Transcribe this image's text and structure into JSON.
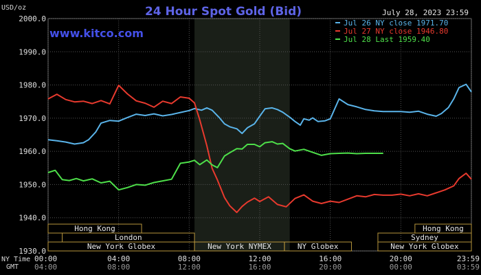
{
  "chart_data": {
    "type": "line",
    "title": "24 Hour Spot Gold (Bid)",
    "watermark": "www.kitco.com",
    "date_label": "July 28, 2023 23:59",
    "ylabel": "USD/oz",
    "ylim": [
      1930,
      2000
    ],
    "xlim": [
      0,
      24
    ],
    "y_ticks": [
      "2000.0",
      "1990.0",
      "1980.0",
      "1970.0",
      "1960.0",
      "1950.0",
      "1940.0",
      "1930.0"
    ],
    "y_tick_values": [
      2000,
      1990,
      1980,
      1970,
      1960,
      1950,
      1940,
      1930
    ],
    "x_ticks": [
      0,
      4,
      8,
      12,
      16,
      20,
      24
    ],
    "x_tick_labels": [
      "00:00",
      "04:00",
      "08:00",
      "12:00",
      "16:00",
      "20:00",
      "23:59"
    ],
    "gmt_tick_labels": [
      "04:00",
      "08:00",
      "12:00",
      "16:00",
      "20:00",
      "00:00",
      "03:59"
    ],
    "ny_time_label": "NY Time",
    "gmt_label": "GMT",
    "highlight_range": [
      8.3,
      13.7
    ],
    "legend": [
      {
        "text": "Jul 26 NY close 1971.70",
        "color": "#5ab4ea"
      },
      {
        "text": "Jul 27 NY close 1946.80",
        "color": "#e83a2e"
      },
      {
        "text": "Jul 28 Last 1959.40",
        "color": "#4ee04a"
      }
    ],
    "series": [
      {
        "color": "#5ab4ea",
        "x": [
          0,
          0.5,
          1,
          1.5,
          2,
          2.3,
          2.7,
          3,
          3.5,
          4,
          4.5,
          5,
          5.5,
          6,
          6.5,
          7,
          7.5,
          8,
          8.3,
          8.7,
          9,
          9.3,
          9.7,
          10,
          10.3,
          10.7,
          11,
          11.3,
          11.7,
          12,
          12.3,
          12.7,
          13,
          13.3,
          13.7,
          14,
          14.3,
          14.5,
          14.8,
          15,
          15.3,
          15.7,
          16,
          16.5,
          17,
          17.5,
          18,
          18.5,
          19,
          19.5,
          20,
          20.5,
          21,
          21.5,
          22,
          22.3,
          22.7,
          23,
          23.3,
          23.7,
          24
        ],
        "y": [
          1963.5,
          1963.2,
          1962.8,
          1962.2,
          1962.6,
          1963.5,
          1965.8,
          1968.5,
          1969.3,
          1969.1,
          1970.2,
          1971.2,
          1970.8,
          1971.3,
          1970.7,
          1971.1,
          1971.7,
          1972.3,
          1972.9,
          1972.4,
          1973.1,
          1972.4,
          1970.2,
          1968.3,
          1967.4,
          1966.8,
          1965.4,
          1967.1,
          1968.3,
          1970.6,
          1972.8,
          1973.1,
          1972.6,
          1971.8,
          1970.3,
          1969.0,
          1967.9,
          1969.8,
          1969.4,
          1970.1,
          1969.0,
          1969.2,
          1969.8,
          1975.8,
          1974.1,
          1973.4,
          1972.6,
          1972.2,
          1972.0,
          1972.0,
          1972.0,
          1971.8,
          1972.1,
          1971.2,
          1970.6,
          1971.4,
          1973.2,
          1975.8,
          1979.2,
          1980.2,
          1977.9
        ]
      },
      {
        "color": "#e83a2e",
        "x": [
          0,
          0.5,
          1,
          1.5,
          2,
          2.5,
          3,
          3.5,
          4,
          4.5,
          5,
          5.5,
          6,
          6.5,
          7,
          7.5,
          8,
          8.3,
          8.6,
          9,
          9.3,
          9.6,
          10,
          10.3,
          10.7,
          11,
          11.3,
          11.7,
          12,
          12.5,
          13,
          13.5,
          14,
          14.5,
          15,
          15.5,
          16,
          16.5,
          17,
          17.5,
          18,
          18.5,
          19,
          19.5,
          20,
          20.5,
          21,
          21.5,
          22,
          22.5,
          23,
          23.3,
          23.7,
          24
        ],
        "y": [
          1975.8,
          1977.2,
          1975.6,
          1974.9,
          1975.1,
          1974.4,
          1975.3,
          1974.3,
          1979.9,
          1977.3,
          1975.2,
          1974.5,
          1973.3,
          1975.1,
          1974.4,
          1976.4,
          1976.0,
          1974.6,
          1969.5,
          1961.7,
          1954.9,
          1951.4,
          1946.1,
          1943.6,
          1941.6,
          1943.4,
          1944.7,
          1945.9,
          1944.9,
          1946.3,
          1944.0,
          1943.3,
          1945.8,
          1946.9,
          1945.0,
          1944.3,
          1945.0,
          1944.6,
          1945.6,
          1946.6,
          1946.3,
          1947.0,
          1946.8,
          1946.8,
          1947.1,
          1946.6,
          1947.2,
          1946.6,
          1947.5,
          1948.4,
          1949.6,
          1951.8,
          1953.4,
          1951.6
        ]
      },
      {
        "color": "#4ee04a",
        "x": [
          0,
          0.4,
          0.8,
          1.2,
          1.6,
          2,
          2.5,
          3,
          3.5,
          4,
          4.5,
          5,
          5.5,
          6,
          6.5,
          7,
          7.5,
          8,
          8.3,
          8.6,
          9,
          9.3,
          9.6,
          10,
          10.3,
          10.7,
          11,
          11.3,
          11.7,
          12,
          12.3,
          12.7,
          13,
          13.3,
          13.7,
          14,
          14.5,
          15,
          15.5,
          16,
          16.5,
          17,
          17.5,
          18,
          18.5,
          19
        ],
        "y": [
          1953.6,
          1954.3,
          1951.5,
          1951.2,
          1951.8,
          1951.1,
          1951.7,
          1950.5,
          1951.0,
          1948.4,
          1949.1,
          1950.0,
          1949.8,
          1950.6,
          1951.1,
          1951.6,
          1956.4,
          1956.8,
          1957.3,
          1956.0,
          1957.4,
          1955.9,
          1955.1,
          1958.6,
          1959.6,
          1960.8,
          1960.7,
          1962.1,
          1962.1,
          1961.4,
          1962.6,
          1962.9,
          1962.2,
          1962.4,
          1960.8,
          1960.1,
          1960.6,
          1959.7,
          1958.8,
          1959.3,
          1959.4,
          1959.5,
          1959.3,
          1959.4,
          1959.4,
          1959.4
        ]
      }
    ],
    "sessions": [
      {
        "name": "Hong Kong",
        "start": 0,
        "end": 5.3,
        "row": 0
      },
      {
        "name": "London",
        "start": 0.8,
        "end": 8.3,
        "row": 1
      },
      {
        "name": "New York Globex",
        "start": 0,
        "end": 8.3,
        "row": 2
      },
      {
        "name": "New York NYMEX",
        "start": 8.3,
        "end": 13.4,
        "row": 2
      },
      {
        "name": "NY Globex",
        "start": 13.4,
        "end": 17.2,
        "row": 2
      },
      {
        "name": "Hong Kong",
        "start": 20.8,
        "end": 24,
        "row": 0
      },
      {
        "name": "Sydney",
        "start": 18.7,
        "end": 24,
        "row": 1
      },
      {
        "name": "New York Globex",
        "start": 18.7,
        "end": 24,
        "row": 2
      }
    ]
  }
}
